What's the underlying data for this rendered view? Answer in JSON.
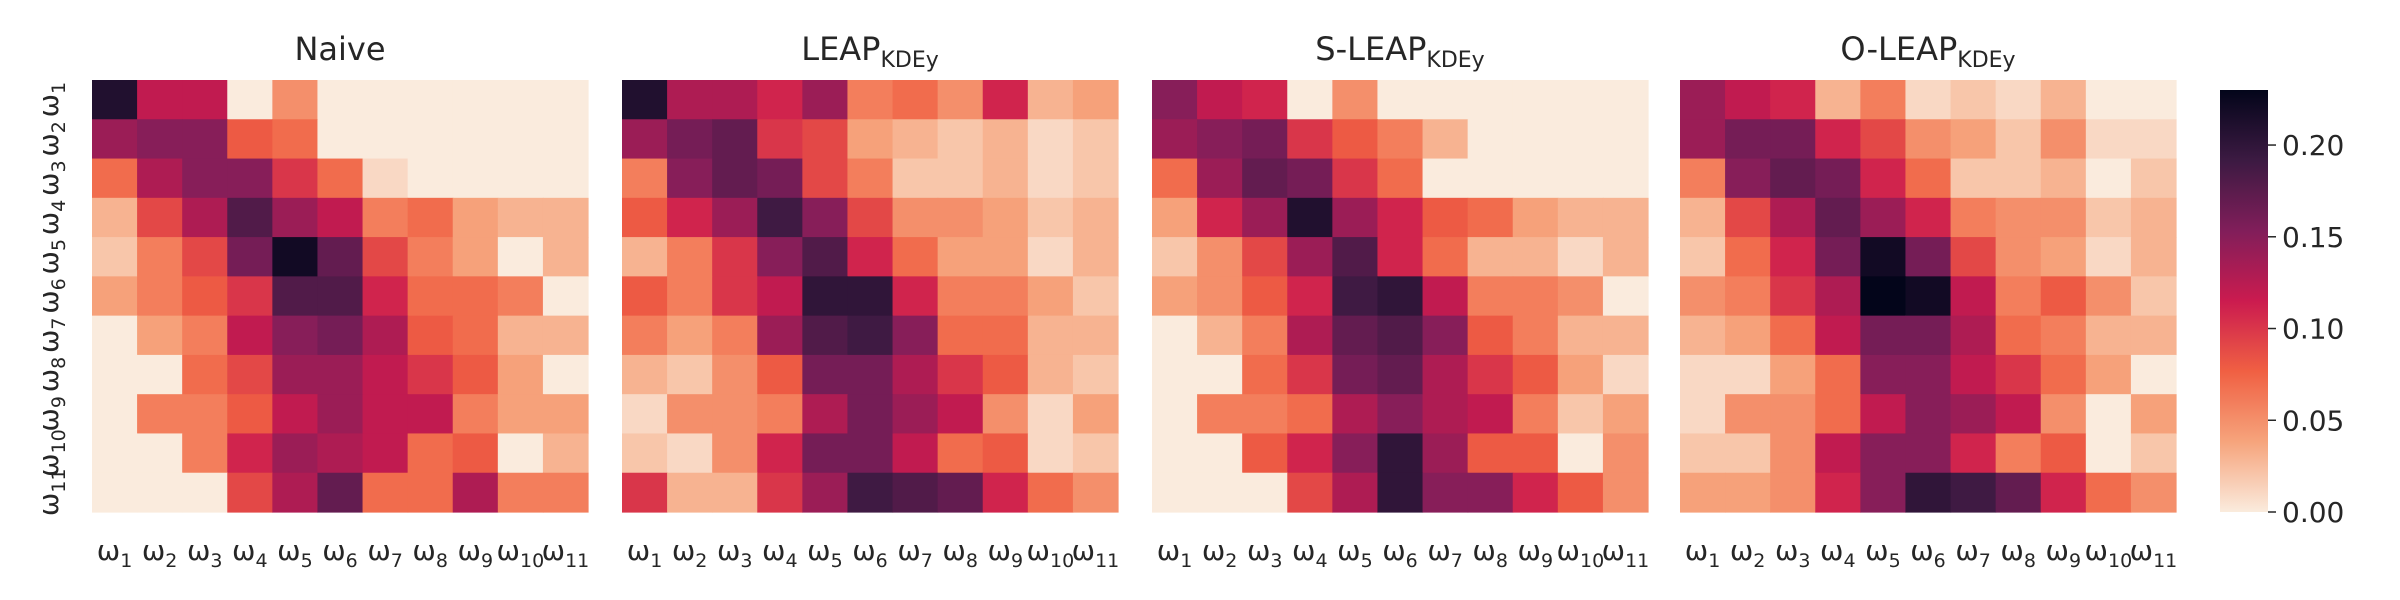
{
  "chart_data": {
    "type": "heatmap",
    "row_labels": [
      "ω1",
      "ω2",
      "ω3",
      "ω4",
      "ω5",
      "ω6",
      "ω7",
      "ω8",
      "ω9",
      "ω10",
      "ω11"
    ],
    "col_labels": [
      "ω1",
      "ω2",
      "ω3",
      "ω4",
      "ω5",
      "ω6",
      "ω7",
      "ω8",
      "ω9",
      "ω10",
      "ω11"
    ],
    "colorbar": {
      "min": 0.0,
      "max": 0.23,
      "ticks": [
        "0.00",
        "0.05",
        "0.10",
        "0.15",
        "0.20"
      ]
    },
    "panels": [
      {
        "title": "Naive",
        "title_sub": "",
        "values": [
          [
            0.21,
            0.12,
            0.12,
            0.0,
            0.05,
            0.0,
            0.0,
            0.0,
            0.0,
            0.0,
            0.0
          ],
          [
            0.14,
            0.15,
            0.15,
            0.08,
            0.07,
            0.0,
            0.0,
            0.0,
            0.0,
            0.0,
            0.0
          ],
          [
            0.07,
            0.13,
            0.15,
            0.15,
            0.1,
            0.07,
            0.01,
            0.0,
            0.0,
            0.0,
            0.0
          ],
          [
            0.03,
            0.09,
            0.13,
            0.18,
            0.14,
            0.12,
            0.06,
            0.07,
            0.04,
            0.03,
            0.03
          ],
          [
            0.02,
            0.06,
            0.09,
            0.16,
            0.22,
            0.17,
            0.09,
            0.06,
            0.04,
            0.0,
            0.03
          ],
          [
            0.04,
            0.06,
            0.08,
            0.1,
            0.18,
            0.18,
            0.11,
            0.07,
            0.07,
            0.06,
            0.0
          ],
          [
            0.0,
            0.04,
            0.06,
            0.12,
            0.15,
            0.16,
            0.13,
            0.08,
            0.07,
            0.03,
            0.03
          ],
          [
            0.0,
            0.0,
            0.07,
            0.09,
            0.14,
            0.14,
            0.12,
            0.1,
            0.08,
            0.04,
            0.0
          ],
          [
            0.0,
            0.06,
            0.06,
            0.08,
            0.12,
            0.14,
            0.12,
            0.12,
            0.06,
            0.04,
            0.04
          ],
          [
            0.0,
            0.0,
            0.06,
            0.11,
            0.14,
            0.13,
            0.12,
            0.07,
            0.08,
            0.0,
            0.03
          ],
          [
            0.0,
            0.0,
            0.0,
            0.09,
            0.13,
            0.17,
            0.07,
            0.07,
            0.13,
            0.06,
            0.06
          ]
        ]
      },
      {
        "title": "LEAP",
        "title_sub": "KDEy",
        "values": [
          [
            0.21,
            0.13,
            0.13,
            0.11,
            0.14,
            0.06,
            0.07,
            0.05,
            0.11,
            0.03,
            0.04
          ],
          [
            0.14,
            0.16,
            0.17,
            0.1,
            0.09,
            0.04,
            0.03,
            0.02,
            0.03,
            0.01,
            0.02
          ],
          [
            0.06,
            0.15,
            0.17,
            0.16,
            0.09,
            0.06,
            0.02,
            0.02,
            0.03,
            0.01,
            0.02
          ],
          [
            0.08,
            0.11,
            0.14,
            0.19,
            0.15,
            0.09,
            0.05,
            0.05,
            0.04,
            0.02,
            0.03
          ],
          [
            0.03,
            0.06,
            0.1,
            0.15,
            0.18,
            0.11,
            0.07,
            0.04,
            0.04,
            0.01,
            0.03
          ],
          [
            0.08,
            0.06,
            0.1,
            0.12,
            0.2,
            0.2,
            0.11,
            0.06,
            0.06,
            0.04,
            0.02
          ],
          [
            0.06,
            0.04,
            0.06,
            0.14,
            0.18,
            0.19,
            0.15,
            0.07,
            0.07,
            0.03,
            0.03
          ],
          [
            0.03,
            0.02,
            0.05,
            0.08,
            0.16,
            0.16,
            0.13,
            0.1,
            0.08,
            0.03,
            0.02
          ],
          [
            0.01,
            0.05,
            0.05,
            0.06,
            0.13,
            0.16,
            0.14,
            0.12,
            0.05,
            0.01,
            0.04
          ],
          [
            0.02,
            0.01,
            0.05,
            0.11,
            0.16,
            0.16,
            0.12,
            0.07,
            0.08,
            0.01,
            0.02
          ],
          [
            0.1,
            0.03,
            0.03,
            0.1,
            0.14,
            0.19,
            0.18,
            0.17,
            0.11,
            0.07,
            0.05
          ]
        ]
      },
      {
        "title": "S-LEAP",
        "title_sub": "KDEy",
        "values": [
          [
            0.15,
            0.12,
            0.11,
            0.0,
            0.05,
            0.0,
            0.0,
            0.0,
            0.0,
            0.0,
            0.0
          ],
          [
            0.14,
            0.15,
            0.16,
            0.1,
            0.08,
            0.06,
            0.03,
            0.0,
            0.0,
            0.0,
            0.0
          ],
          [
            0.07,
            0.14,
            0.17,
            0.16,
            0.1,
            0.07,
            0.0,
            0.0,
            0.0,
            0.0,
            0.0
          ],
          [
            0.04,
            0.11,
            0.14,
            0.21,
            0.14,
            0.11,
            0.08,
            0.07,
            0.04,
            0.03,
            0.03
          ],
          [
            0.02,
            0.05,
            0.09,
            0.14,
            0.18,
            0.11,
            0.07,
            0.03,
            0.03,
            0.01,
            0.03
          ],
          [
            0.04,
            0.05,
            0.08,
            0.11,
            0.19,
            0.2,
            0.12,
            0.06,
            0.06,
            0.05,
            0.0
          ],
          [
            0.0,
            0.03,
            0.06,
            0.13,
            0.17,
            0.18,
            0.15,
            0.08,
            0.06,
            0.03,
            0.03
          ],
          [
            0.0,
            0.0,
            0.07,
            0.1,
            0.16,
            0.17,
            0.13,
            0.1,
            0.08,
            0.04,
            0.01
          ],
          [
            0.0,
            0.06,
            0.06,
            0.07,
            0.13,
            0.15,
            0.13,
            0.12,
            0.06,
            0.02,
            0.04
          ],
          [
            0.0,
            0.0,
            0.08,
            0.11,
            0.15,
            0.2,
            0.14,
            0.08,
            0.08,
            0.0,
            0.05
          ],
          [
            0.0,
            0.0,
            0.0,
            0.09,
            0.13,
            0.2,
            0.15,
            0.15,
            0.11,
            0.08,
            0.05
          ]
        ]
      },
      {
        "title": "O-LEAP",
        "title_sub": "KDEy",
        "values": [
          [
            0.14,
            0.12,
            0.11,
            0.03,
            0.06,
            0.01,
            0.02,
            0.01,
            0.03,
            0.0,
            0.0
          ],
          [
            0.14,
            0.16,
            0.16,
            0.11,
            0.09,
            0.05,
            0.04,
            0.02,
            0.05,
            0.01,
            0.01
          ],
          [
            0.06,
            0.15,
            0.17,
            0.16,
            0.11,
            0.07,
            0.02,
            0.02,
            0.03,
            0.0,
            0.02
          ],
          [
            0.03,
            0.09,
            0.13,
            0.17,
            0.14,
            0.11,
            0.06,
            0.05,
            0.05,
            0.02,
            0.03
          ],
          [
            0.02,
            0.07,
            0.11,
            0.16,
            0.22,
            0.16,
            0.09,
            0.05,
            0.04,
            0.01,
            0.03
          ],
          [
            0.05,
            0.06,
            0.1,
            0.13,
            0.23,
            0.22,
            0.12,
            0.06,
            0.08,
            0.05,
            0.02
          ],
          [
            0.03,
            0.04,
            0.07,
            0.12,
            0.16,
            0.16,
            0.13,
            0.07,
            0.06,
            0.03,
            0.03
          ],
          [
            0.01,
            0.01,
            0.04,
            0.07,
            0.15,
            0.15,
            0.12,
            0.1,
            0.07,
            0.04,
            0.0
          ],
          [
            0.01,
            0.05,
            0.05,
            0.07,
            0.12,
            0.15,
            0.14,
            0.12,
            0.05,
            0.0,
            0.04
          ],
          [
            0.02,
            0.02,
            0.05,
            0.12,
            0.15,
            0.15,
            0.11,
            0.06,
            0.08,
            0.0,
            0.02
          ],
          [
            0.04,
            0.04,
            0.05,
            0.11,
            0.15,
            0.2,
            0.19,
            0.17,
            0.11,
            0.07,
            0.05
          ]
        ]
      }
    ]
  },
  "colors": {
    "colormap": [
      "#faebdd",
      "#f6a47c",
      "#f06043",
      "#cb1b4f",
      "#811e5a",
      "#3c1a42",
      "#03051a"
    ]
  }
}
